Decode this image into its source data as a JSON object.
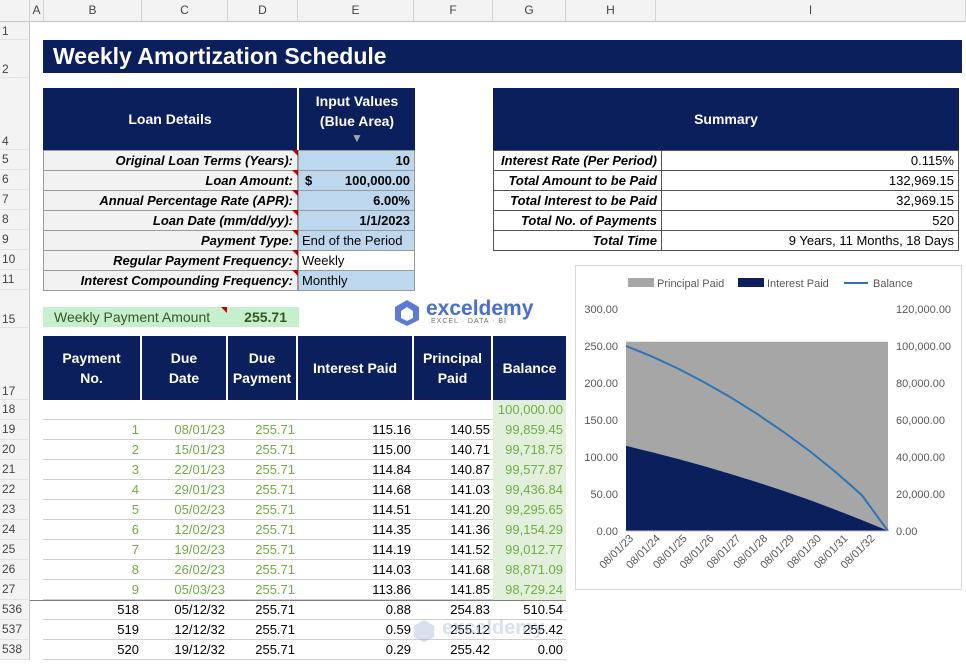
{
  "columns": [
    "A",
    "B",
    "C",
    "D",
    "E",
    "F",
    "G",
    "H",
    "I"
  ],
  "rows": [
    "1",
    "2",
    "4",
    "5",
    "6",
    "7",
    "8",
    "9",
    "10",
    "11",
    "15",
    "17",
    "18",
    "19",
    "20",
    "21",
    "22",
    "23",
    "24",
    "25",
    "26",
    "27",
    "536",
    "537",
    "538"
  ],
  "title": "Weekly Amortization Schedule",
  "loan": {
    "header_label": "Loan Details",
    "header_input": "Input Values (Blue Area)",
    "labels": [
      "Original Loan Terms (Years):",
      "Loan Amount:",
      "Annual Percentage Rate (APR):",
      "Loan Date (mm/dd/yy):",
      "Payment Type:",
      "Regular Payment Frequency:",
      "Interest Compounding Frequency:"
    ],
    "currency": "$",
    "values": [
      "10",
      "100,000.00",
      "6.00%",
      "1/1/2023",
      "End of the Period",
      "Weekly",
      "Monthly"
    ]
  },
  "summary": {
    "header": "Summary",
    "labels": [
      "Interest Rate (Per Period)",
      "Total Amount to be Paid",
      "Total Interest to be Paid",
      "Total No. of Payments",
      "Total Time"
    ],
    "values": [
      "0.115%",
      "132,969.15",
      "32,969.15",
      "520",
      "9 Years, 11 Months, 18 Days"
    ]
  },
  "payment": {
    "label": "Weekly Payment Amount",
    "value": "255.71"
  },
  "logo": {
    "name": "exceldemy",
    "tagline": "EXCEL · DATA · BI"
  },
  "table": {
    "headers": [
      "Payment No.",
      "Due Date",
      "Due Payment",
      "Interest Paid",
      "Principal Paid",
      "Balance"
    ],
    "opening_balance": "100,000.00",
    "rows": [
      [
        "1",
        "08/01/23",
        "255.71",
        "115.16",
        "140.55",
        "99,859.45"
      ],
      [
        "2",
        "15/01/23",
        "255.71",
        "115.00",
        "140.71",
        "99,718.75"
      ],
      [
        "3",
        "22/01/23",
        "255.71",
        "114.84",
        "140.87",
        "99,577.87"
      ],
      [
        "4",
        "29/01/23",
        "255.71",
        "114.68",
        "141.03",
        "99,436.84"
      ],
      [
        "5",
        "05/02/23",
        "255.71",
        "114.51",
        "141.20",
        "99,295.65"
      ],
      [
        "6",
        "12/02/23",
        "255.71",
        "114.35",
        "141.36",
        "99,154.29"
      ],
      [
        "7",
        "19/02/23",
        "255.71",
        "114.19",
        "141.52",
        "99,012.77"
      ],
      [
        "8",
        "26/02/23",
        "255.71",
        "114.03",
        "141.68",
        "98,871.09"
      ],
      [
        "9",
        "05/03/23",
        "255.71",
        "113.86",
        "141.85",
        "98,729.24"
      ]
    ],
    "tail_rows": [
      [
        "518",
        "05/12/32",
        "255.71",
        "0.88",
        "254.83",
        "510.54"
      ],
      [
        "519",
        "12/12/32",
        "255.71",
        "0.59",
        "255.12",
        "255.42"
      ],
      [
        "520",
        "19/12/32",
        "255.71",
        "0.29",
        "255.42",
        "0.00"
      ]
    ]
  },
  "chart_data": {
    "type": "area",
    "legend": [
      "Principal Paid",
      "Interest Paid",
      "Balance"
    ],
    "legend_position": "top",
    "colors": {
      "principal": "#a6a6a6",
      "interest": "#0a1f5c",
      "balance": "#2e75b6"
    },
    "x_ticks": [
      "08/01/23",
      "08/01/24",
      "08/01/25",
      "08/01/26",
      "08/01/27",
      "08/01/28",
      "08/01/29",
      "08/01/30",
      "08/01/31",
      "08/01/32"
    ],
    "y_left_ticks": [
      "300.00",
      "250.00",
      "200.00",
      "150.00",
      "100.00",
      "50.00",
      "0.00"
    ],
    "y_right_ticks": [
      "120,000.00",
      "100,000.00",
      "80,000.00",
      "60,000.00",
      "40,000.00",
      "20,000.00",
      "0.00"
    ],
    "ylim_left": [
      0,
      300
    ],
    "ylim_right": [
      0,
      120000
    ],
    "x": [
      0,
      1,
      2,
      3,
      4,
      5,
      6,
      7,
      8,
      9,
      10
    ],
    "series": [
      {
        "name": "Principal Paid",
        "values": [
          140.55,
          149.2,
          158.4,
          168.2,
          178.6,
          189.6,
          201.3,
          213.7,
          226.9,
          240.9,
          255.42
        ]
      },
      {
        "name": "Interest Paid",
        "values": [
          115.16,
          106.5,
          97.3,
          87.5,
          77.1,
          66.1,
          54.4,
          42.0,
          28.8,
          14.8,
          0.29
        ]
      },
      {
        "name": "Balance",
        "values": [
          100000,
          94300,
          87700,
          80300,
          72200,
          63300,
          53700,
          43300,
          31900,
          19400,
          0
        ]
      }
    ]
  }
}
